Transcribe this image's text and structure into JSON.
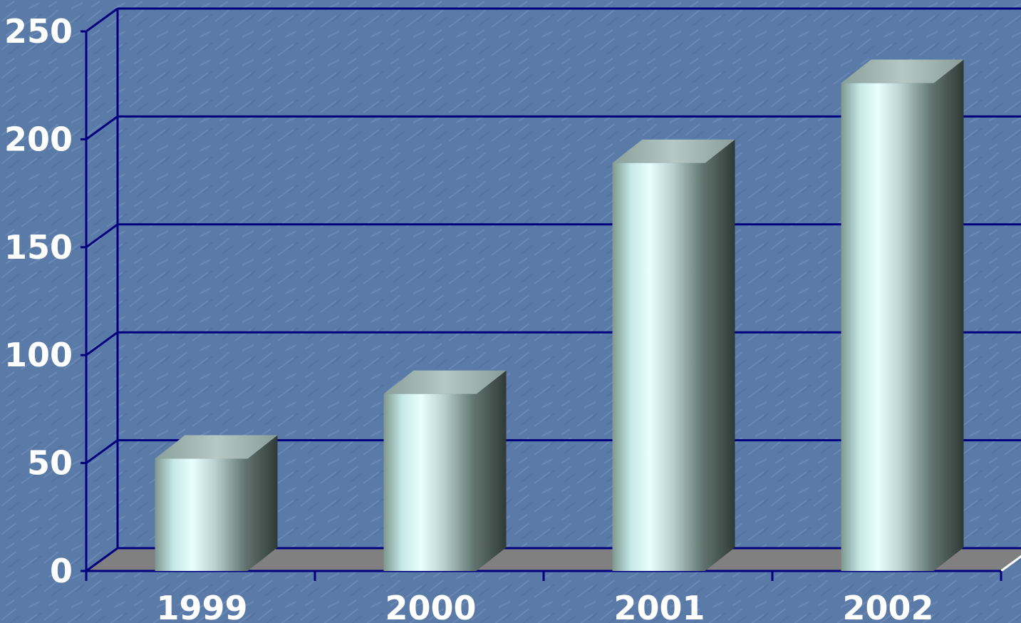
{
  "chart_data": {
    "type": "bar",
    "categories": [
      "1999",
      "2000",
      "2001",
      "2002"
    ],
    "values": [
      52,
      82,
      189,
      226
    ],
    "ylim": [
      0,
      250
    ],
    "yticks": [
      "0",
      "50",
      "100",
      "150",
      "200",
      "250"
    ],
    "title": "",
    "xlabel": "",
    "ylabel": "",
    "grid": true,
    "style": "3d-column",
    "colors": {
      "background": "#5a7aa8",
      "gridline": "#00007f",
      "floor": "#808080",
      "bar_face_light": "#e8ffff",
      "bar_face_dark": "#5b6e68",
      "bar_side": "#4a5752",
      "bar_top": "#9fb2ad",
      "label": "#ffffff"
    }
  }
}
